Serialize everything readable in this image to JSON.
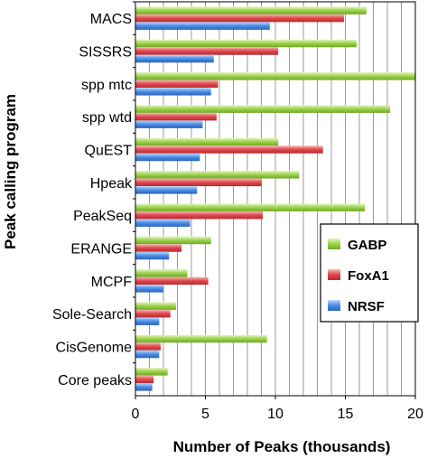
{
  "chart_data": {
    "type": "bar",
    "orientation": "horizontal",
    "xlabel": "Number of Peaks (thousands)",
    "ylabel": "Peak calling program",
    "xlim": [
      0,
      20
    ],
    "xticks": [
      "0",
      "5",
      "10",
      "15",
      "20"
    ],
    "grid": "vertical lines at every 1 thousand",
    "legend_position": "right",
    "categories": [
      "MACS",
      "SISSRS",
      "spp mtc",
      "spp wtd",
      "QuEST",
      "Hpeak",
      "PeakSeq",
      "ERANGE",
      "MCPF",
      "Sole-Search",
      "CisGenome",
      "Core peaks"
    ],
    "series": [
      {
        "name": "GABP",
        "color": "#9ad24a",
        "values": [
          16.5,
          15.8,
          20.0,
          18.2,
          10.2,
          11.7,
          16.4,
          5.4,
          3.7,
          2.9,
          9.4,
          2.3
        ]
      },
      {
        "name": "FoxA1",
        "color": "#e0474c",
        "values": [
          14.9,
          10.2,
          5.9,
          5.8,
          13.4,
          9.0,
          9.1,
          3.3,
          5.2,
          2.5,
          1.8,
          1.3
        ]
      },
      {
        "name": "NRSF",
        "color": "#4a8ee6",
        "values": [
          9.6,
          5.6,
          5.4,
          4.8,
          4.6,
          4.4,
          3.9,
          2.4,
          2.0,
          1.7,
          1.7,
          1.2
        ]
      }
    ]
  }
}
